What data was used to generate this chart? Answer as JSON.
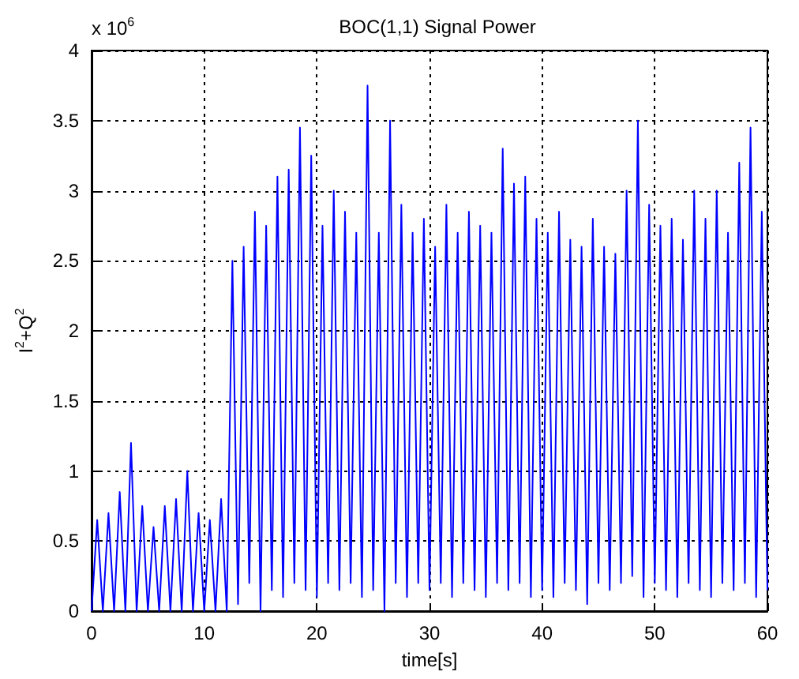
{
  "chart_data": {
    "type": "line",
    "title": "BOC(1,1) Signal Power",
    "xlabel": "time[s]",
    "ylabel": "I$^{2}$+Q$^{2}$",
    "annotations": [
      "x 10$^{6}$"
    ],
    "x": [
      0,
      0.5,
      1,
      1.5,
      2,
      2.5,
      3,
      3.5,
      4,
      4.5,
      5,
      5.5,
      6,
      6.5,
      7,
      7.5,
      8,
      8.5,
      9,
      9.5,
      10,
      10.5,
      11,
      11.5,
      12,
      12.5,
      13,
      13.5,
      14,
      14.5,
      15,
      15.5,
      16,
      16.5,
      17,
      17.5,
      18,
      18.5,
      19,
      19.5,
      20,
      20.5,
      21,
      21.5,
      22,
      22.5,
      23,
      23.5,
      24,
      24.5,
      25,
      25.5,
      26,
      26.5,
      27,
      27.5,
      28,
      28.5,
      29,
      29.5,
      30,
      30.5,
      31,
      31.5,
      32,
      32.5,
      33,
      33.5,
      34,
      34.5,
      35,
      35.5,
      36,
      36.5,
      37,
      37.5,
      38,
      38.5,
      39,
      39.5,
      40,
      40.5,
      41,
      41.5,
      42,
      42.5,
      43,
      43.5,
      44,
      44.5,
      45,
      45.5,
      46,
      46.5,
      47,
      47.5,
      48,
      48.5,
      49,
      49.5,
      50,
      50.5,
      51,
      51.5,
      52,
      52.5,
      53,
      53.5,
      54,
      54.5,
      55,
      55.5,
      56,
      56.5,
      57,
      57.5,
      58,
      58.5,
      59,
      59.5,
      60
    ],
    "series": [
      {
        "color": "#0000ff",
        "values": [
          0,
          0.65,
          0,
          0.7,
          0,
          0.85,
          0,
          1.2,
          0,
          0.75,
          0,
          0.6,
          0,
          0.75,
          0,
          0.8,
          0,
          1.0,
          0,
          0.7,
          0,
          0.65,
          0,
          0.8,
          0,
          2.5,
          0.05,
          2.6,
          0.2,
          2.85,
          0.0,
          2.75,
          0.15,
          3.1,
          0.1,
          3.15,
          0.2,
          3.45,
          0.15,
          3.25,
          0.1,
          2.75,
          0.2,
          3.0,
          0.15,
          2.85,
          0.2,
          2.7,
          0.1,
          3.75,
          0.15,
          2.7,
          0.0,
          3.5,
          0.2,
          2.9,
          0.1,
          2.7,
          0.2,
          2.8,
          0.15,
          2.6,
          0.2,
          2.9,
          0.1,
          2.7,
          0.2,
          2.85,
          0.15,
          2.75,
          0.1,
          2.7,
          0.2,
          3.3,
          0.15,
          3.05,
          0.2,
          3.1,
          0.1,
          2.8,
          0.15,
          2.7,
          0.1,
          2.85,
          0.2,
          2.65,
          0.15,
          2.6,
          0.05,
          2.8,
          0.2,
          2.6,
          0.15,
          2.55,
          0.2,
          3.0,
          0.25,
          3.5,
          0.1,
          2.9,
          0.2,
          2.75,
          0.15,
          2.8,
          0.1,
          2.65,
          0.2,
          3.0,
          0.15,
          2.8,
          0.1,
          3.0,
          0.2,
          2.7,
          0.15,
          3.2,
          0.2,
          3.45,
          0.1,
          2.85,
          0.15
        ]
      }
    ],
    "xlim": [
      0,
      60
    ],
    "xticks": [
      0,
      10,
      20,
      30,
      40,
      50,
      60
    ],
    "ylim": [
      0,
      4
    ],
    "yticks": [
      0,
      0.5,
      1,
      1.5,
      2,
      2.5,
      3,
      3.5,
      4
    ],
    "grid": true,
    "marker": "none",
    "line_style": "solid"
  }
}
